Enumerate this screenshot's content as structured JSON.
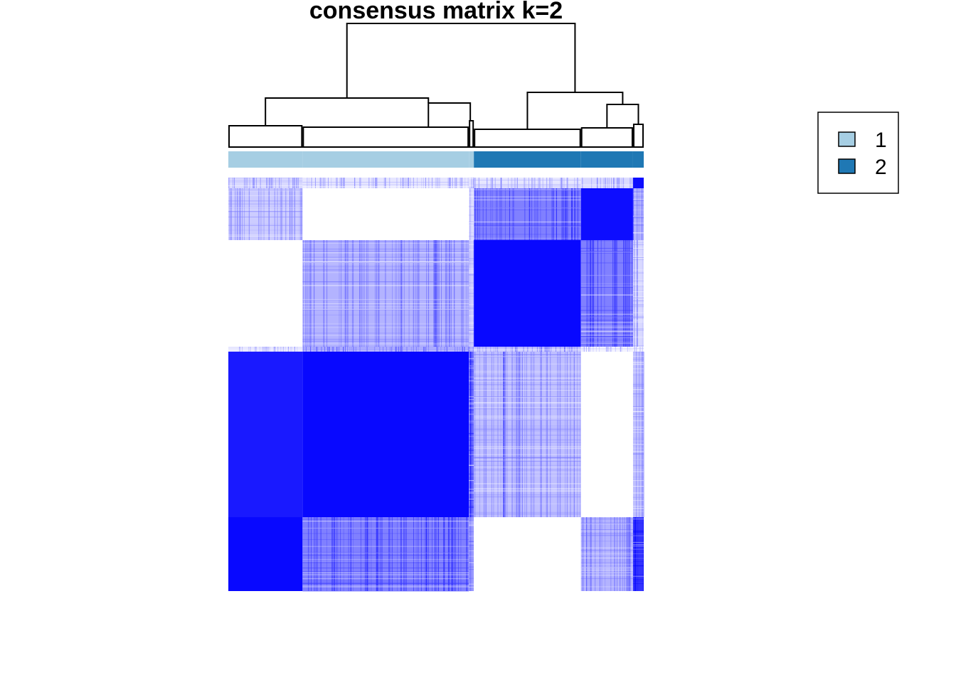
{
  "chart_data": {
    "type": "heatmap",
    "title": "consensus matrix k=2",
    "xlabel": "",
    "ylabel": "",
    "value_range": [
      0,
      1
    ],
    "colors": {
      "low": "#ffffff",
      "high": "#0000ff",
      "class_1": "#a6cee3",
      "class_2": "#1f78b4"
    },
    "legend": {
      "position": "right",
      "entries": [
        {
          "label": "1",
          "color": "#a6cee3"
        },
        {
          "label": "2",
          "color": "#1f78b4"
        }
      ]
    },
    "cluster_groups": [
      {
        "id": "A",
        "size": 104,
        "class": "1"
      },
      {
        "id": "B",
        "size": 233,
        "class": "1"
      },
      {
        "id": "C",
        "size": 7,
        "class": "1"
      },
      {
        "id": "D",
        "size": 150,
        "class": "2"
      },
      {
        "id": "E",
        "size": 73,
        "class": "2"
      },
      {
        "id": "F",
        "size": 15,
        "class": "2"
      }
    ],
    "row_groups": [
      "F",
      "E",
      "D",
      "C",
      "B",
      "A"
    ],
    "block_consensus": [
      [
        0.15,
        0.1,
        0.12,
        0.1,
        0.15,
        0.95
      ],
      [
        0.2,
        0.0,
        0.1,
        0.5,
        0.95,
        0.3
      ],
      [
        0.0,
        0.3,
        0.2,
        0.97,
        0.5,
        0.15
      ],
      [
        0.1,
        0.3,
        0.3,
        0.2,
        0.05,
        0.05
      ],
      [
        0.9,
        0.97,
        0.6,
        0.25,
        0.0,
        0.25
      ],
      [
        0.97,
        0.5,
        0.4,
        0.0,
        0.3,
        0.8
      ]
    ]
  }
}
